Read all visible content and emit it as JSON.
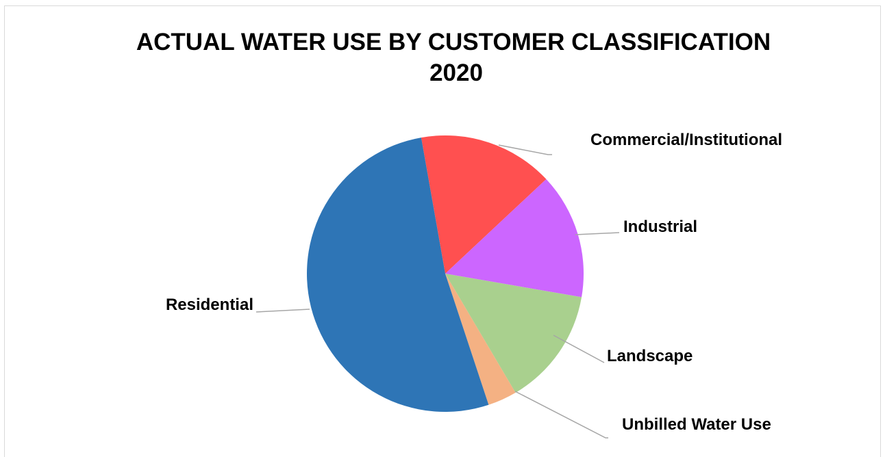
{
  "chart_data": {
    "type": "pie",
    "title": "ACTUAL WATER USE BY CUSTOMER CLASSIFICATION",
    "subtitle": "2020",
    "slices": [
      {
        "name": "Commercial/Institutional",
        "value": 15.8,
        "color": "#ff5050"
      },
      {
        "name": "Industrial",
        "value": 14.7,
        "color": "#cc66ff"
      },
      {
        "name": "Landscape",
        "value": 13.8,
        "color": "#a9d08e"
      },
      {
        "name": "Unbilled Water Use",
        "value": 3.4,
        "color": "#f4b183"
      },
      {
        "name": "Residential",
        "value": 52.3,
        "color": "#2e75b6"
      }
    ],
    "legend": "none"
  }
}
